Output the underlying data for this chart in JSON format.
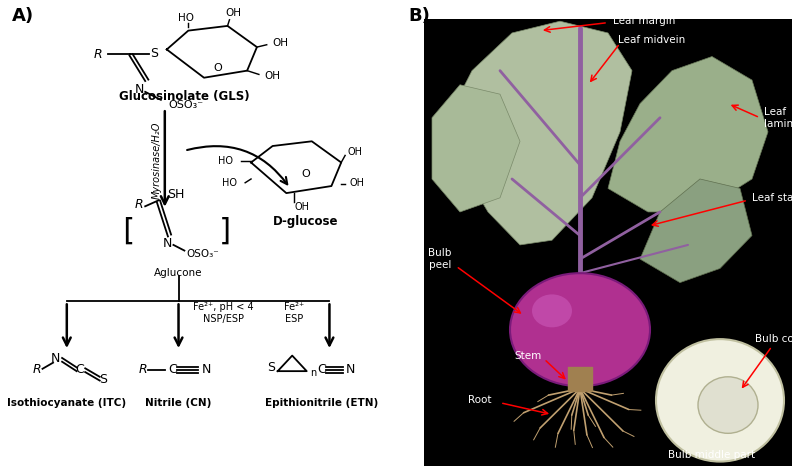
{
  "panel_a_label": "A)",
  "panel_b_label": "B)",
  "fig_width": 8.0,
  "fig_height": 4.71,
  "bg_color": "#ffffff",
  "panel_b_bg": "#000000",
  "panel_a_annotations": {
    "gls_label": "Glucosinolate (GLS)",
    "myrosinase_label": "Myrosinase/H₂O",
    "dglucose_label": "D-glucose",
    "aglucone_label": "Aglucone",
    "fe2_nsp_label": "Fe²⁺, pH < 4\nNSP/ESP",
    "fe2_esp_label": "Fe²⁺\nESP",
    "itc_label": "Isothiocyanate (ITC)",
    "cn_label": "Nitrile (CN)",
    "etn_label": "Epithionitrile (ETN)"
  },
  "panel_b_annotations": {
    "leaf_margin": "Leaf margin",
    "leaf_midvein": "Leaf midvein",
    "leaf_lamina": "Leaf\nlamina",
    "leaf_stalk": "Leaf stalk",
    "bulb_peel": "Bulb\npeel",
    "stem": "Stem",
    "root": "Root",
    "bulb_core": "Bulb core",
    "bulb_middle": "Bulb middle part"
  },
  "leaf_color": "#b8c8a8",
  "leaf_edge_color": "#8a9e7a",
  "leaf_dark_color": "#8aaa7a",
  "purple_stalk": "#9060a0",
  "bulb_color": "#b03090",
  "bulb_edge": "#7a1a7a",
  "root_color": "#c0a070",
  "cut_bulb_color": "#f0f0e0",
  "cut_bulb_edge": "#c0c0a0",
  "core_color": "#e0e0d0",
  "core_edge": "#b0b090"
}
